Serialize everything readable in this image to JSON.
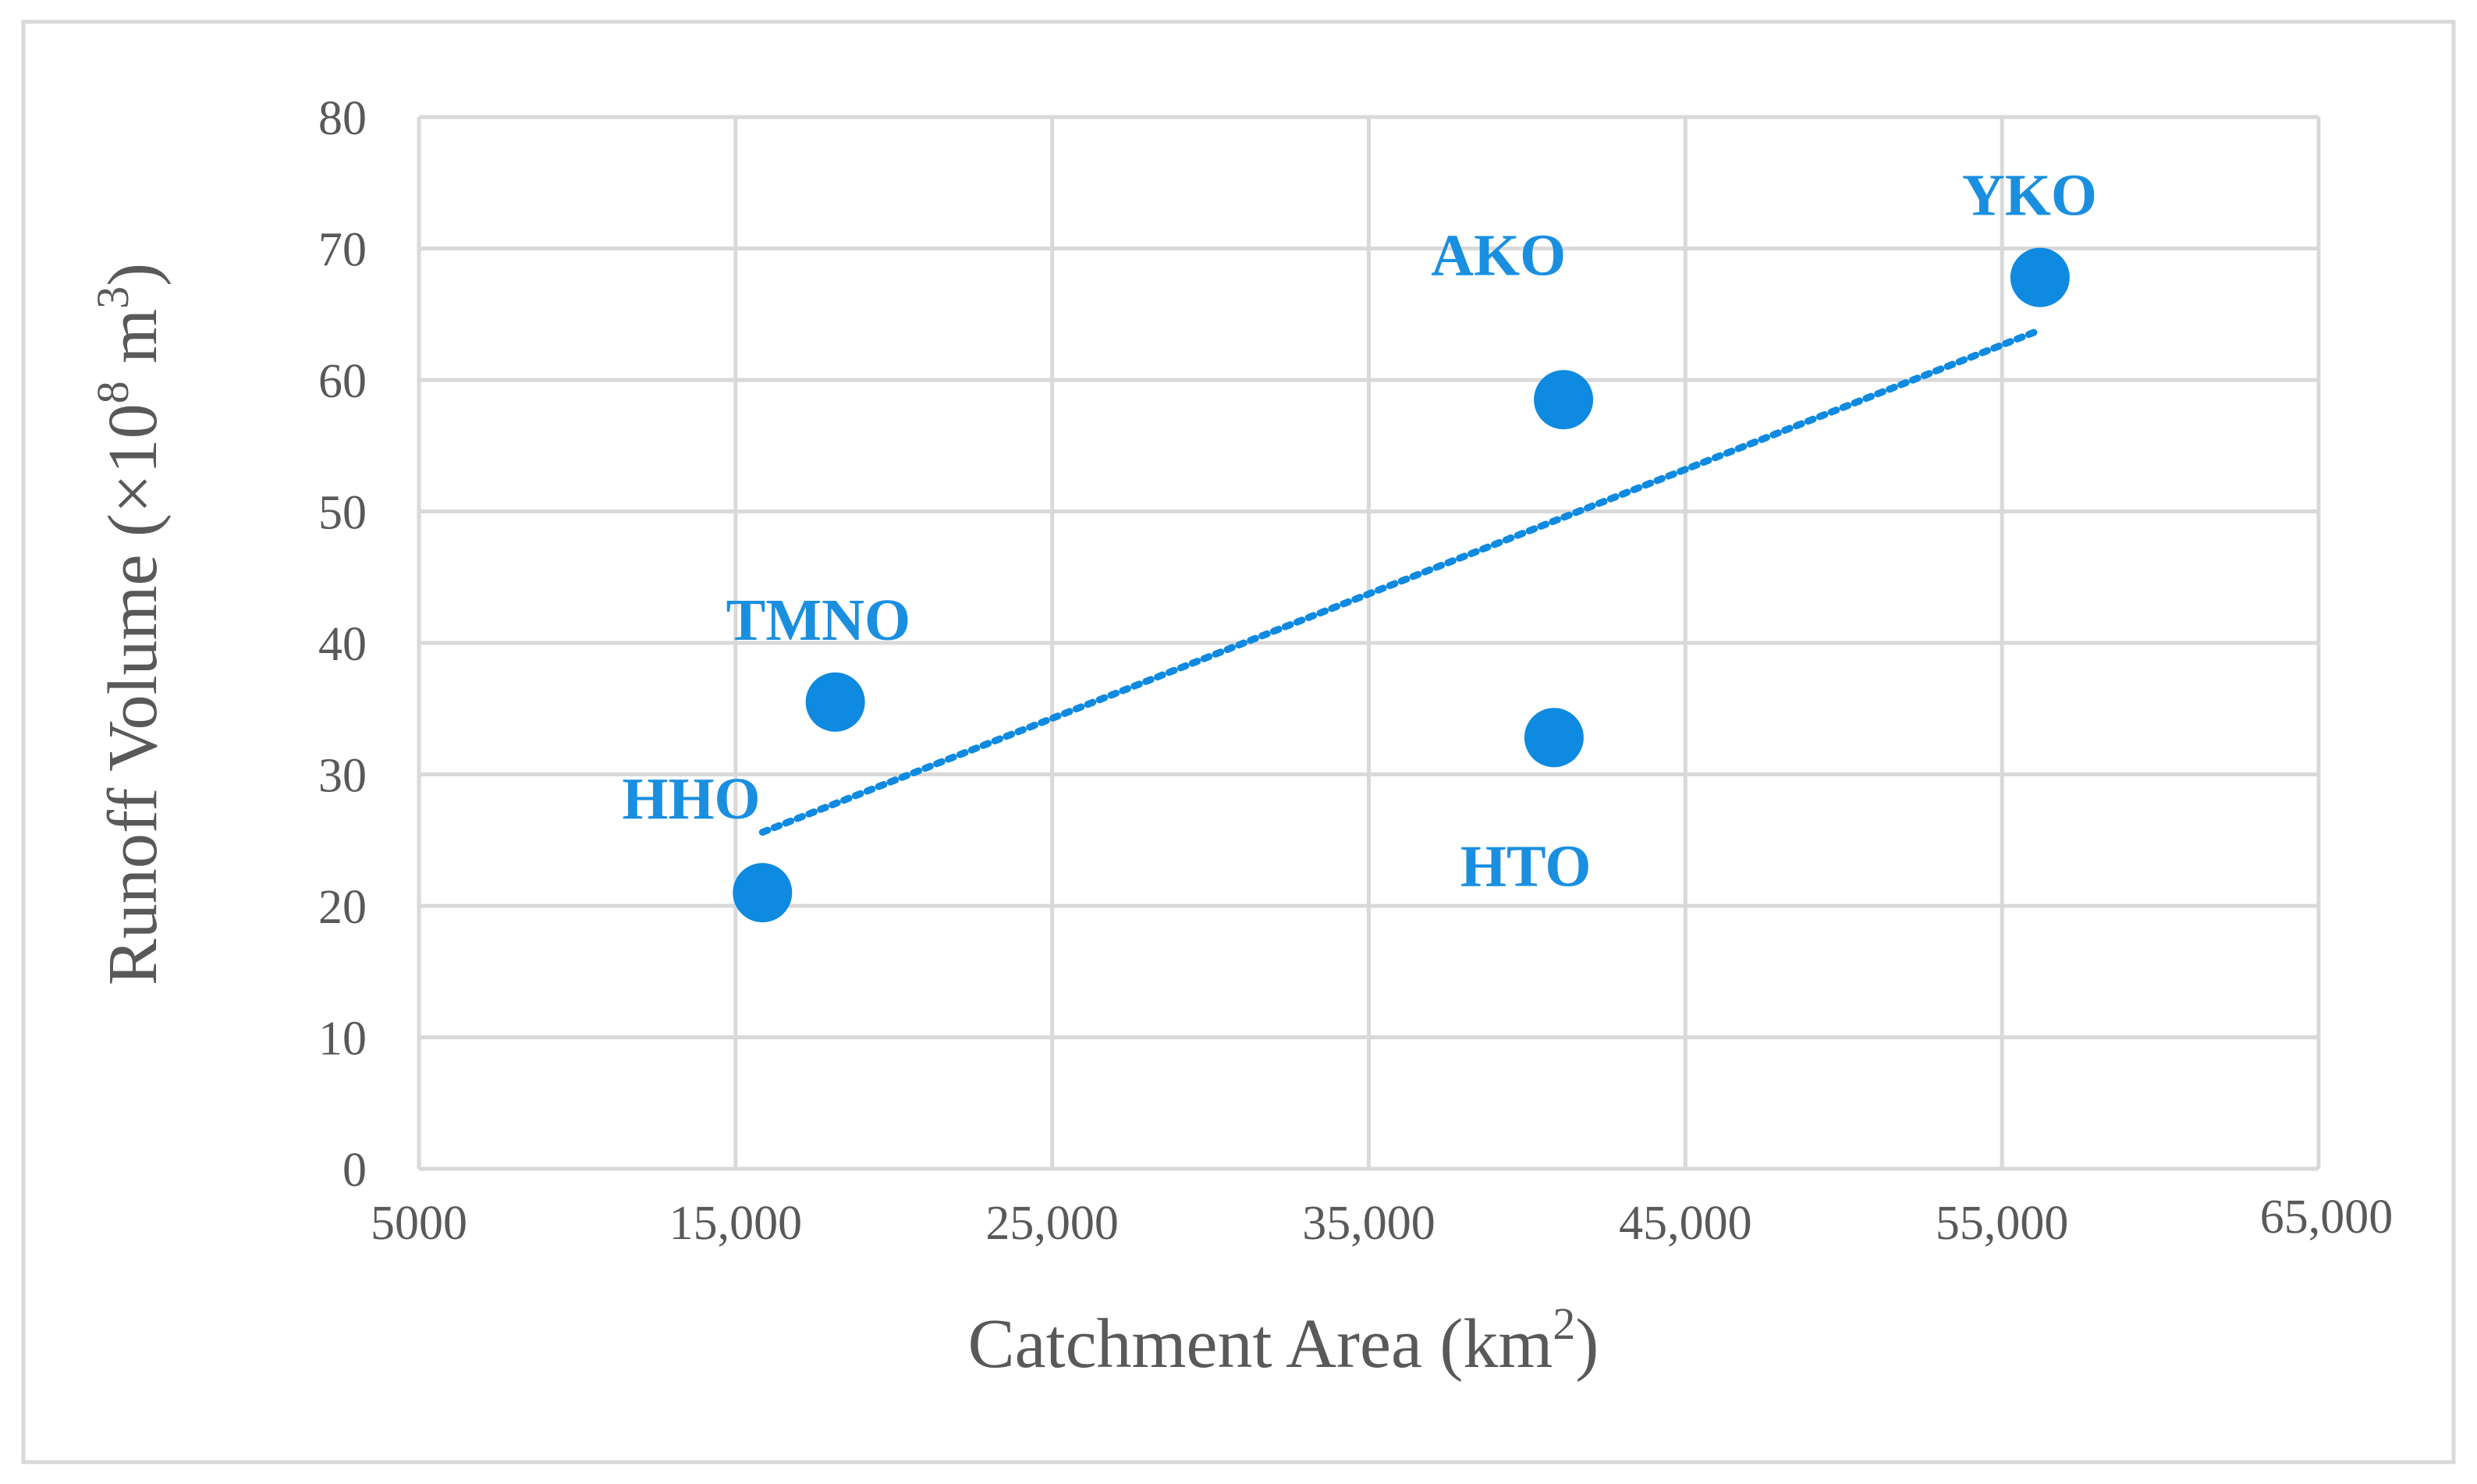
{
  "chart_data": {
    "type": "scatter",
    "xlabel": "Catchment Area (km",
    "xlabel_sup": "2",
    "xlabel_end": ")",
    "ylabel": "Runoff Volume (×10",
    "ylabel_sup1": "8",
    "ylabel_mid": " m",
    "ylabel_sup2": "3",
    "ylabel_end": ")",
    "xlim": [
      5000,
      65000
    ],
    "ylim": [
      0,
      80
    ],
    "x_ticks": [
      5000,
      15000,
      25000,
      35000,
      45000,
      55000,
      65000
    ],
    "x_tick_labels": [
      "5000",
      "15,000",
      "25,000",
      "35,000",
      "45,000",
      "55,000",
      "65,000"
    ],
    "y_ticks": [
      0,
      10,
      20,
      30,
      40,
      50,
      60,
      70,
      80
    ],
    "y_tick_labels": [
      "0",
      "10",
      "20",
      "30",
      "40",
      "50",
      "60",
      "70",
      "80"
    ],
    "grid": true,
    "points": [
      {
        "label": "HHO",
        "x": 15850,
        "y": 21.0
      },
      {
        "label": "TMNO",
        "x": 18150,
        "y": 35.5
      },
      {
        "label": "HTO",
        "x": 40850,
        "y": 32.8
      },
      {
        "label": "AKO",
        "x": 41150,
        "y": 58.5
      },
      {
        "label": "YKO",
        "x": 56200,
        "y": 67.8
      }
    ],
    "trendline": {
      "style": "dotted",
      "x_start": 15850,
      "x_end": 56200,
      "y_start": 25.6,
      "y_end": 63.8
    },
    "colors": {
      "marker": "#0e8ae0",
      "label": "#1a8fe0",
      "trend": "#0e8ae0",
      "grid": "#d9d9d9",
      "text": "#595959",
      "border": "#d9d9d9"
    }
  }
}
